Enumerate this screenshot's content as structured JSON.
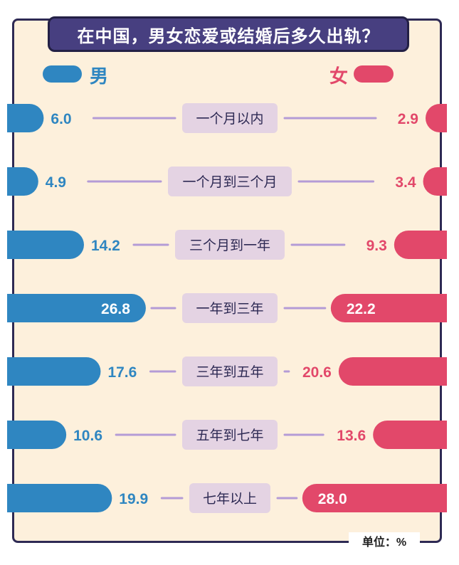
{
  "title": "在中国，男女恋爱或结婚后多久出轨？",
  "unit_label": "单位：%",
  "colors": {
    "male": "#2f86c1",
    "female": "#e2486a",
    "label_box": "#e4d3e3",
    "connector": "#b49bd6",
    "background": "#fdf0dc",
    "title_bg": "#473f80"
  },
  "chart_data": {
    "type": "bar",
    "title": "在中国，男女恋爱或结婚后多久出轨？",
    "unit": "%",
    "categories": [
      "一个月以内",
      "一个月到三个月",
      "三个月到一年",
      "一年到三年",
      "三年到五年",
      "五年到七年",
      "七年以上"
    ],
    "series": [
      {
        "name": "男",
        "values": [
          6.0,
          4.9,
          14.2,
          26.8,
          17.6,
          10.6,
          19.9
        ]
      },
      {
        "name": "女",
        "values": [
          2.9,
          3.4,
          9.3,
          22.2,
          20.6,
          13.6,
          28.0
        ]
      }
    ],
    "legend": "top",
    "grid": false
  }
}
